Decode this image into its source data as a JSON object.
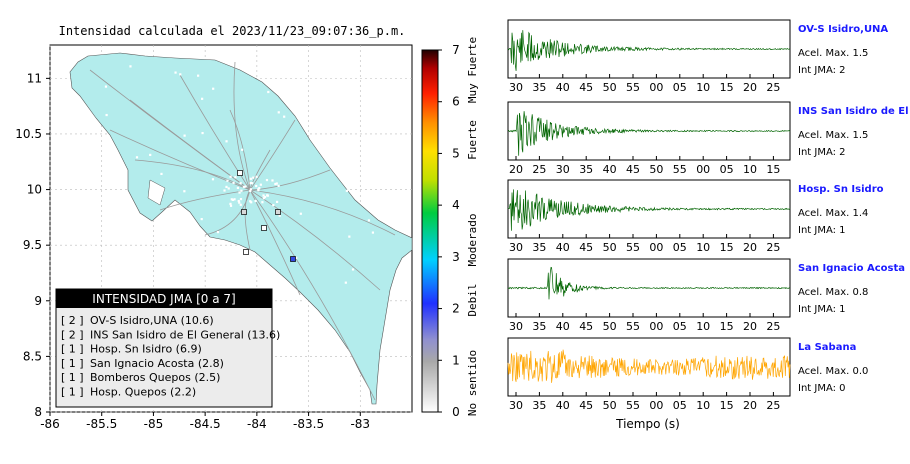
{
  "header": {
    "title": "Intensidad calculada el 2023/11/23_09:07:36_p.m."
  },
  "map": {
    "x_ticks": [
      "-86",
      "-85.5",
      "-85",
      "-84.5",
      "-84",
      "-83.5",
      "-83"
    ],
    "y_ticks": [
      "11",
      "10.5",
      "10",
      "9.5",
      "9",
      "8.5",
      "8"
    ],
    "land_color": "#b3ecec"
  },
  "colorbar": {
    "ticks": [
      "7",
      "6",
      "5",
      "4",
      "3",
      "2",
      "1",
      "0"
    ],
    "class_labels": [
      "Muy Fuerte",
      "Fuerte",
      "Moderado",
      "Debil",
      "No sentido"
    ]
  },
  "legend": {
    "title": "INTENSIDAD JMA [0 a 7]",
    "items": [
      {
        "value": "[ 2 ]",
        "label": "OV-S Isidro,UNA (10.6)"
      },
      {
        "value": "[ 2 ]",
        "label": "INS San Isidro de El General (13.6)"
      },
      {
        "value": "[ 1 ]",
        "label": "Hosp. Sn Isidro (6.9)"
      },
      {
        "value": "[ 1 ]",
        "label": "San Ignacio Acosta (2.8)"
      },
      {
        "value": "[ 1 ]",
        "label": "Bomberos Quepos (2.5)"
      },
      {
        "value": "[ 1 ]",
        "label": "Hosp. Quepos (2.2)"
      }
    ]
  },
  "waveforms": {
    "xlabel": "Tiempo (s)",
    "panels": [
      {
        "station": "OV-S Isidro,UNA",
        "accel": "Acel. Max. 1.5",
        "jma": "Int JMA: 2",
        "color": "#006400",
        "ticks": [
          "30",
          "35",
          "40",
          "45",
          "50",
          "55",
          "00",
          "05",
          "10",
          "15",
          "20",
          "25"
        ],
        "onset": 0.01,
        "amp": 1.0,
        "decay": 0.14
      },
      {
        "station": "INS San Isidro de El Ge",
        "accel": "Acel. Max. 1.5",
        "jma": "Int JMA: 2",
        "color": "#006400",
        "ticks": [
          "20",
          "25",
          "30",
          "35",
          "40",
          "45",
          "50",
          "55",
          "00",
          "05",
          "10",
          "15"
        ],
        "onset": 0.03,
        "amp": 1.0,
        "decay": 0.12
      },
      {
        "station": "Hosp. Sn Isidro",
        "accel": "Acel. Max. 1.4",
        "jma": "Int JMA: 1",
        "color": "#006400",
        "ticks": [
          "30",
          "35",
          "40",
          "45",
          "50",
          "55",
          "00",
          "05",
          "10",
          "15",
          "20",
          "25"
        ],
        "onset": 0.005,
        "amp": 1.0,
        "decay": 0.16
      },
      {
        "station": "San Ignacio Acosta",
        "accel": "Acel. Max. 0.8",
        "jma": "Int JMA: 1",
        "color": "#006400",
        "ticks": [
          "30",
          "35",
          "40",
          "45",
          "50",
          "55",
          "00",
          "05",
          "10",
          "15",
          "20",
          "25"
        ],
        "onset": 0.14,
        "amp": 1.0,
        "decay": 0.05
      },
      {
        "station": "La Sabana",
        "accel": "Acel. Max. 0.0",
        "jma": "Int JMA: 0",
        "color": "#ffa500",
        "ticks": [
          "30",
          "35",
          "40",
          "45",
          "50",
          "55",
          "00",
          "05",
          "10",
          "15",
          "20",
          "25"
        ],
        "onset": 0.0,
        "amp": 0.7,
        "decay": 10
      }
    ]
  },
  "chart_data": [
    {
      "type": "scatter",
      "title": "Intensidad calculada el 2023/11/23_09:07:36_p.m.",
      "xlabel": "",
      "ylabel": "",
      "xlim": [
        -86,
        -82.5
      ],
      "ylim": [
        8,
        11.3
      ],
      "legend_placement": "bottom-left",
      "series": [
        {
          "name": "OV-S Isidro,UNA (10.6)",
          "intensity": 2
        },
        {
          "name": "INS San Isidro de El General (13.6)",
          "intensity": 2
        },
        {
          "name": "Hosp. Sn Isidro (6.9)",
          "intensity": 1
        },
        {
          "name": "San Ignacio Acosta (2.8)",
          "intensity": 1
        },
        {
          "name": "Bomberos Quepos (2.5)",
          "intensity": 1
        },
        {
          "name": "Hosp. Quepos (2.2)",
          "intensity": 1
        }
      ],
      "colorbar_range": [
        0,
        7
      ]
    },
    {
      "type": "line",
      "xlabel": "Tiempo (s)",
      "series": [
        {
          "name": "OV-S Isidro,UNA",
          "acel_max": 1.5,
          "int_jma": 2
        },
        {
          "name": "INS San Isidro de El Ge",
          "acel_max": 1.5,
          "int_jma": 2
        },
        {
          "name": "Hosp. Sn Isidro",
          "acel_max": 1.4,
          "int_jma": 1
        },
        {
          "name": "San Ignacio Acosta",
          "acel_max": 0.8,
          "int_jma": 1
        },
        {
          "name": "La Sabana",
          "acel_max": 0.0,
          "int_jma": 0
        }
      ]
    }
  ]
}
